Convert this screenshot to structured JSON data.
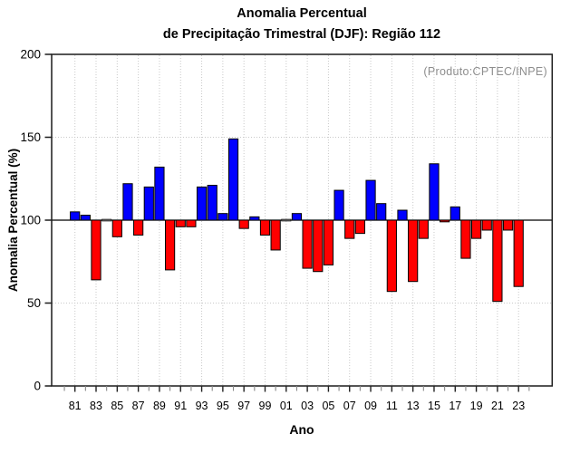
{
  "title": {
    "line1": "Anomalia Percentual",
    "line2": "de Precipitação Trimestral (DJF): Região 112"
  },
  "annotation": "(Produto:CPTEC/INPE)",
  "axes": {
    "y_label": "Anomalia Percentual (%)",
    "x_label": "Ano"
  },
  "colors": {
    "positive": "#0000ff",
    "negative": "#ff0000",
    "neutral": "#777777",
    "baseline": "#000000",
    "grid": "#c9c9c9",
    "axis": "#1c1c1c",
    "annotation": "#8d8d8d"
  },
  "chart_data": {
    "type": "bar",
    "title": "Anomalia Percentual de Precipitação Trimestral (DJF): Região 112",
    "xlabel": "Ano",
    "ylabel": "Anomalia Percentual (%)",
    "ylim": [
      0,
      200
    ],
    "baseline": 100,
    "grid_horizontal": [
      50,
      150
    ],
    "legend": "none",
    "y_ticks": [
      0,
      50,
      100,
      150,
      200
    ],
    "y_tick_labels": [
      "0",
      "50",
      "100",
      "150",
      "200"
    ],
    "x_tick_years": [
      1981,
      1983,
      1985,
      1987,
      1989,
      1991,
      1993,
      1995,
      1997,
      1999,
      2001,
      2003,
      2005,
      2007,
      2009,
      2011,
      2013,
      2015,
      2017,
      2019,
      2021,
      2023
    ],
    "x_tick_labels": [
      "81",
      "83",
      "85",
      "87",
      "89",
      "91",
      "93",
      "95",
      "97",
      "99",
      "01",
      "03",
      "05",
      "07",
      "09",
      "11",
      "13",
      "15",
      "17",
      "19",
      "21",
      "23"
    ],
    "years": [
      1981,
      1982,
      1983,
      1984,
      1985,
      1986,
      1987,
      1988,
      1989,
      1990,
      1991,
      1992,
      1993,
      1994,
      1995,
      1996,
      1997,
      1998,
      1999,
      2000,
      2001,
      2002,
      2003,
      2004,
      2005,
      2006,
      2007,
      2008,
      2009,
      2010,
      2011,
      2012,
      2013,
      2014,
      2015,
      2016,
      2017,
      2018,
      2019,
      2020,
      2021,
      2022,
      2023
    ],
    "values": [
      105,
      103,
      64,
      100,
      90,
      122,
      91,
      120,
      132,
      70,
      96,
      96,
      120,
      121,
      104,
      149,
      95,
      102,
      91,
      82,
      100,
      104,
      71,
      69,
      73,
      118,
      89,
      92,
      124,
      110,
      57,
      106,
      63,
      89,
      134,
      99,
      108,
      77,
      89,
      94,
      51,
      94,
      60
    ]
  }
}
